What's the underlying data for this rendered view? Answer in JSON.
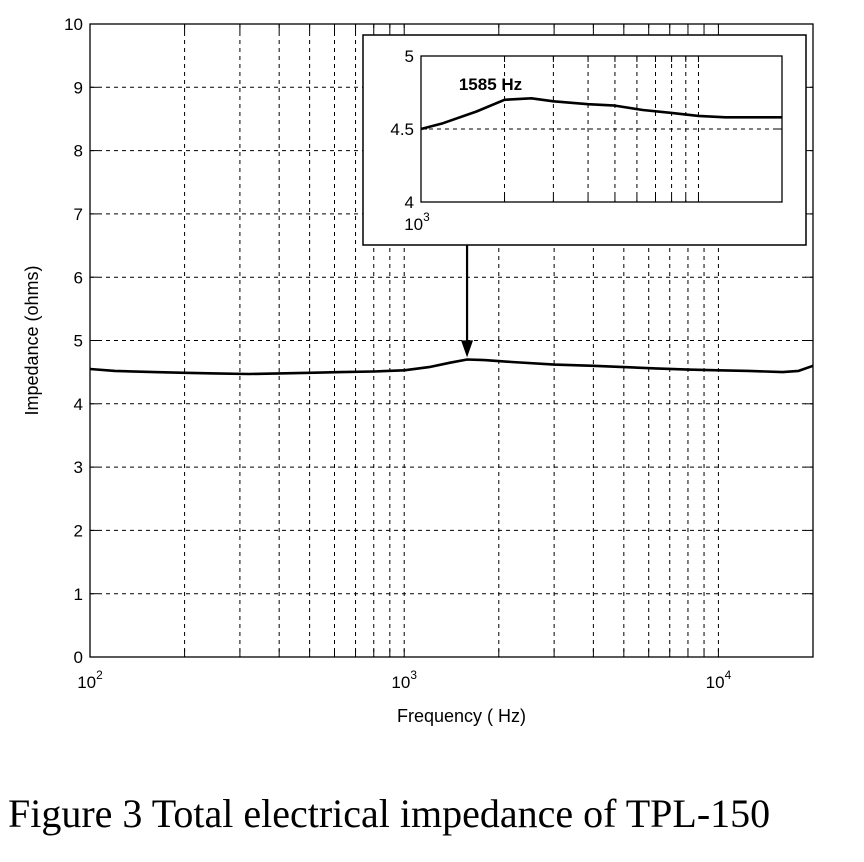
{
  "caption": "Figure 3 Total electrical impedance of TPL-150",
  "chart_data": [
    {
      "type": "line",
      "xlabel": "Frequency ( Hz)",
      "ylabel": "Impedance (ohms)",
      "xscale": "log",
      "xlim": [
        100,
        20000
      ],
      "ylim": [
        0,
        10
      ],
      "yticks": [
        "0",
        "1",
        "2",
        "3",
        "4",
        "5",
        "6",
        "7",
        "8",
        "9",
        "10"
      ],
      "xtick_labels": [
        {
          "value": 100,
          "base": "10",
          "exp": "2"
        },
        {
          "value": 1000,
          "base": "10",
          "exp": "3"
        },
        {
          "value": 10000,
          "base": "10",
          "exp": "4"
        }
      ],
      "grid": true,
      "series": [
        {
          "x": [
            100,
            120,
            160,
            200,
            250,
            320,
            400,
            500,
            630,
            800,
            1000,
            1200,
            1400,
            1585,
            1800,
            2200,
            3000,
            4000,
            5000,
            6300,
            8000,
            10000,
            12500,
            16000,
            18000,
            20000
          ],
          "values": [
            4.55,
            4.52,
            4.5,
            4.49,
            4.48,
            4.47,
            4.48,
            4.49,
            4.5,
            4.51,
            4.53,
            4.58,
            4.65,
            4.7,
            4.69,
            4.66,
            4.62,
            4.6,
            4.58,
            4.56,
            4.54,
            4.53,
            4.52,
            4.5,
            4.52,
            4.6
          ]
        }
      ],
      "annotation": {
        "type": "arrow",
        "x": 1585,
        "y_from": 6.5,
        "y_to": 4.75
      }
    },
    {
      "type": "line",
      "inset": true,
      "xscale": "log",
      "xlim": [
        1000,
        20000
      ],
      "ylim": [
        4,
        5
      ],
      "yticks": [
        "4",
        "4.5",
        "5"
      ],
      "xtick_labels": [
        {
          "value": 1000,
          "base": "10",
          "exp": "3"
        }
      ],
      "grid": true,
      "annotation_text": "1585 Hz",
      "series": [
        {
          "x": [
            1000,
            1200,
            1585,
            2000,
            2500,
            3000,
            4000,
            5000,
            6300,
            8000,
            10000,
            12500,
            16000,
            20000
          ],
          "values": [
            4.5,
            4.54,
            4.62,
            4.7,
            4.71,
            4.69,
            4.67,
            4.66,
            4.63,
            4.61,
            4.59,
            4.58,
            4.58,
            4.58
          ]
        }
      ]
    }
  ]
}
